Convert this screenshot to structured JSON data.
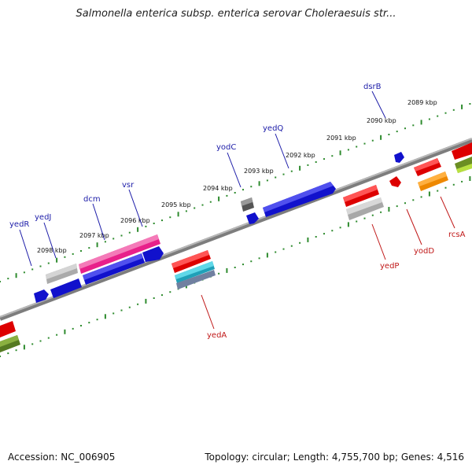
{
  "title": "Salmonella enterica subsp. enterica serovar Choleraesuis str...",
  "footer": {
    "accession": "Accession: NC_006905",
    "summary": "Topology: circular; Length: 4,755,700 bp; Genes: 4,516"
  },
  "colors": {
    "backbone": "#8a8a8a",
    "tick": "#2e8b2e",
    "label_forward": "#1c1ca8",
    "label_reverse": "#c01818"
  },
  "kbp_labels": [
    "2089 kbp",
    "2090 kbp",
    "2091 kbp",
    "2092 kbp",
    "2093 kbp",
    "2094 kbp",
    "2095 kbp",
    "2096 kbp",
    "2097 kbp",
    "2098 kbp"
  ],
  "genes_forward": [
    "dsrB",
    "yedQ",
    "yodC",
    "vsr",
    "dcm",
    "yedJ",
    "yedR"
  ],
  "genes_reverse": [
    "rcsA",
    "yodD",
    "yedP",
    "yedA"
  ]
}
